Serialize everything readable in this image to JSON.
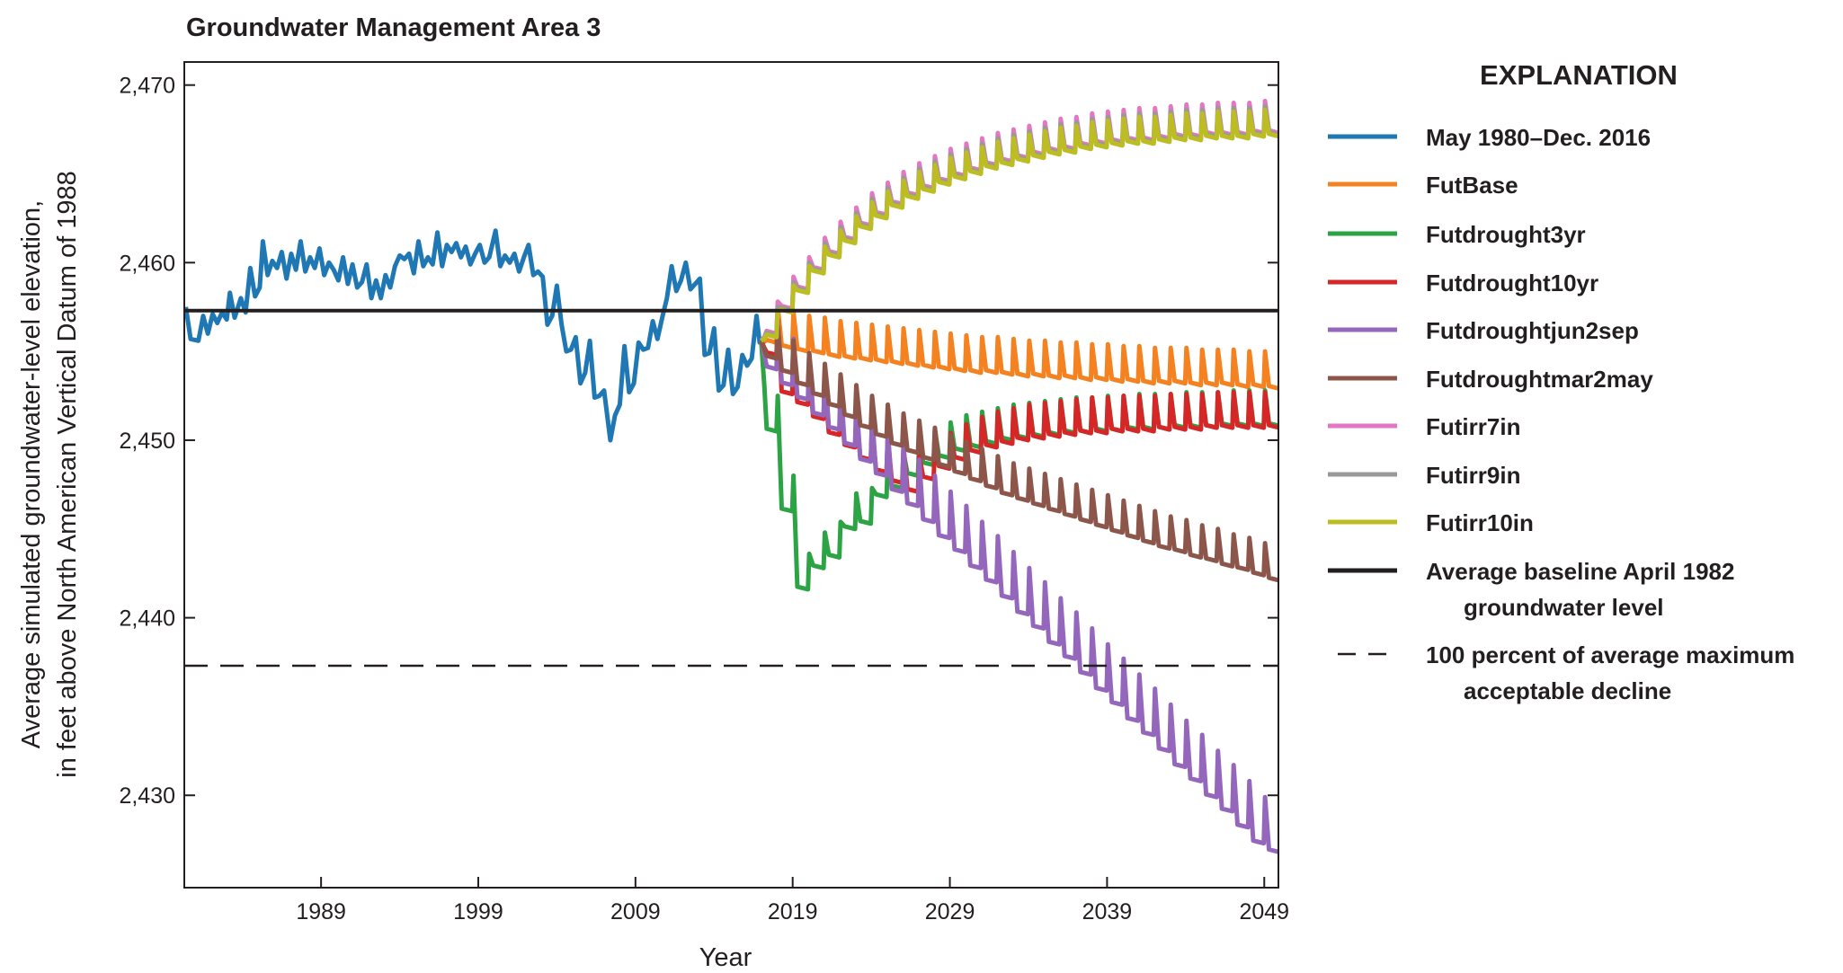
{
  "chart_data": {
    "type": "line",
    "title": "Groundwater Management Area 3",
    "xlabel": "Year",
    "ylabel": [
      "Average simulated groundwater-level elevation,",
      "in feet above North American Vertical Datum of 1988"
    ],
    "xlim": [
      1980.3,
      2049.9
    ],
    "ylim": [
      2424.8,
      2471.3
    ],
    "x_ticks": [
      1989,
      1999,
      2009,
      2019,
      2029,
      2039,
      2049
    ],
    "x_tick_labels": [
      "1989",
      "1999",
      "2009",
      "2019",
      "2029",
      "2039",
      "2049"
    ],
    "y_ticks": [
      2430,
      2440,
      2450,
      2460,
      2470
    ],
    "y_tick_labels": [
      "2,430",
      "2,440",
      "2,450",
      "2,460",
      "2,470"
    ],
    "grid": false,
    "legend": {
      "title": "EXPLANATION",
      "placement": "right"
    },
    "reference_lines": [
      {
        "name": "Average baseline April 1982 groundwater level",
        "label_lines": [
          "Average baseline April 1982",
          "groundwater level"
        ],
        "y": 2457.3,
        "color": "#231f20",
        "style": "solid"
      },
      {
        "name": "100 percent of average maximum acceptable decline",
        "label_lines": [
          "100 percent of average maximum",
          "acceptable decline"
        ],
        "y": 2437.3,
        "color": "#231f20",
        "style": "dashed"
      }
    ],
    "historical": {
      "name": "May 1980–Dec. 2016",
      "color": "#1f77b4",
      "points": [
        [
          1980.4,
          2457.5
        ],
        [
          1980.7,
          2455.7
        ],
        [
          1981.2,
          2455.6
        ],
        [
          1981.5,
          2457.0
        ],
        [
          1981.8,
          2456.0
        ],
        [
          1982.1,
          2457.1
        ],
        [
          1982.4,
          2456.6
        ],
        [
          1982.7,
          2457.2
        ],
        [
          1983.0,
          2456.8
        ],
        [
          1983.2,
          2458.3
        ],
        [
          1983.5,
          2456.9
        ],
        [
          1983.9,
          2458.0
        ],
        [
          1984.2,
          2457.2
        ],
        [
          1984.5,
          2459.7
        ],
        [
          1984.8,
          2458.1
        ],
        [
          1985.1,
          2458.6
        ],
        [
          1985.3,
          2461.2
        ],
        [
          1985.6,
          2459.3
        ],
        [
          1985.9,
          2460.1
        ],
        [
          1986.2,
          2459.7
        ],
        [
          1986.5,
          2460.6
        ],
        [
          1986.8,
          2459.1
        ],
        [
          1987.1,
          2460.5
        ],
        [
          1987.4,
          2459.6
        ],
        [
          1987.7,
          2461.2
        ],
        [
          1988.0,
          2459.5
        ],
        [
          1988.3,
          2460.3
        ],
        [
          1988.6,
          2459.7
        ],
        [
          1988.9,
          2460.8
        ],
        [
          1989.2,
          2459.3
        ],
        [
          1989.5,
          2460.0
        ],
        [
          1989.8,
          2459.6
        ],
        [
          1990.1,
          2459.0
        ],
        [
          1990.4,
          2460.3
        ],
        [
          1990.7,
          2458.8
        ],
        [
          1991.0,
          2459.9
        ],
        [
          1991.3,
          2458.6
        ],
        [
          1991.6,
          2458.9
        ],
        [
          1991.9,
          2459.9
        ],
        [
          1992.2,
          2458.0
        ],
        [
          1992.5,
          2459.0
        ],
        [
          1992.8,
          2458.0
        ],
        [
          1993.1,
          2459.3
        ],
        [
          1993.4,
          2458.6
        ],
        [
          1993.7,
          2459.8
        ],
        [
          1994.0,
          2460.4
        ],
        [
          1994.3,
          2460.2
        ],
        [
          1994.6,
          2460.5
        ],
        [
          1994.9,
          2459.4
        ],
        [
          1995.2,
          2461.2
        ],
        [
          1995.5,
          2459.8
        ],
        [
          1995.8,
          2460.3
        ],
        [
          1996.1,
          2459.9
        ],
        [
          1996.4,
          2461.7
        ],
        [
          1996.7,
          2459.8
        ],
        [
          1997.0,
          2461.0
        ],
        [
          1997.3,
          2460.6
        ],
        [
          1997.6,
          2461.1
        ],
        [
          1997.9,
          2460.3
        ],
        [
          1998.2,
          2460.9
        ],
        [
          1998.5,
          2459.9
        ],
        [
          1998.8,
          2460.5
        ],
        [
          1999.1,
          2461.0
        ],
        [
          1999.4,
          2460.0
        ],
        [
          1999.7,
          2460.3
        ],
        [
          2000.1,
          2461.8
        ],
        [
          2000.4,
          2459.8
        ],
        [
          2000.7,
          2460.4
        ],
        [
          2001.0,
          2460.0
        ],
        [
          2001.3,
          2460.5
        ],
        [
          2001.6,
          2459.5
        ],
        [
          2001.9,
          2460.3
        ],
        [
          2002.2,
          2461.0
        ],
        [
          2002.5,
          2459.3
        ],
        [
          2002.8,
          2459.5
        ],
        [
          2003.1,
          2459.2
        ],
        [
          2003.4,
          2456.5
        ],
        [
          2003.7,
          2457.0
        ],
        [
          2004.0,
          2458.7
        ],
        [
          2004.3,
          2456.5
        ],
        [
          2004.6,
          2455.0
        ],
        [
          2004.9,
          2455.1
        ],
        [
          2005.2,
          2455.8
        ],
        [
          2005.5,
          2453.2
        ],
        [
          2005.8,
          2453.8
        ],
        [
          2006.1,
          2455.6
        ],
        [
          2006.4,
          2452.4
        ],
        [
          2006.7,
          2452.5
        ],
        [
          2007.0,
          2452.8
        ],
        [
          2007.4,
          2450.0
        ],
        [
          2007.7,
          2451.4
        ],
        [
          2008.0,
          2452.0
        ],
        [
          2008.3,
          2455.3
        ],
        [
          2008.6,
          2452.7
        ],
        [
          2008.9,
          2453.2
        ],
        [
          2009.2,
          2455.5
        ],
        [
          2009.5,
          2455.1
        ],
        [
          2009.8,
          2455.2
        ],
        [
          2010.1,
          2456.7
        ],
        [
          2010.4,
          2455.7
        ],
        [
          2010.7,
          2456.9
        ],
        [
          2011.0,
          2458.0
        ],
        [
          2011.3,
          2459.8
        ],
        [
          2011.6,
          2458.4
        ],
        [
          2011.9,
          2459.0
        ],
        [
          2012.2,
          2460.0
        ],
        [
          2012.5,
          2458.5
        ],
        [
          2012.8,
          2458.8
        ],
        [
          2013.1,
          2459.1
        ],
        [
          2013.4,
          2454.8
        ],
        [
          2013.7,
          2454.9
        ],
        [
          2014.0,
          2456.3
        ],
        [
          2014.3,
          2452.8
        ],
        [
          2014.6,
          2453.1
        ],
        [
          2014.9,
          2455.1
        ],
        [
          2015.2,
          2452.6
        ],
        [
          2015.5,
          2453.0
        ],
        [
          2015.8,
          2454.8
        ],
        [
          2016.1,
          2454.2
        ],
        [
          2016.4,
          2454.6
        ],
        [
          2016.7,
          2457.0
        ],
        [
          2016.9,
          2455.5
        ],
        [
          2017.0,
          2455.6
        ]
      ]
    },
    "scenario_start": {
      "year": 2017.0,
      "value": 2455.6
    },
    "scenario_years": [
      2017,
      2018,
      2019,
      2020,
      2021,
      2022,
      2023,
      2024,
      2025,
      2026,
      2027,
      2028,
      2029,
      2030,
      2031,
      2032,
      2033,
      2034,
      2035,
      2036,
      2037,
      2038,
      2039,
      2040,
      2041,
      2042,
      2043,
      2044,
      2045,
      2046,
      2047,
      2048,
      2049
    ],
    "series": [
      {
        "name": "FutBase",
        "color": "#f58220",
        "seasonal_peak_above_trough": 2.0,
        "annual_troughs": [
          2455.5,
          2455.2,
          2455.0,
          2454.9,
          2454.7,
          2454.6,
          2454.5,
          2454.4,
          2454.3,
          2454.2,
          2454.1,
          2454.0,
          2453.9,
          2453.8,
          2453.8,
          2453.7,
          2453.6,
          2453.6,
          2453.5,
          2453.5,
          2453.4,
          2453.4,
          2453.3,
          2453.3,
          2453.2,
          2453.2,
          2453.2,
          2453.1,
          2453.1,
          2453.1,
          2453.0,
          2453.0,
          2452.9
        ]
      },
      {
        "name": "Futdrought3yr",
        "color": "#2ca344",
        "seasonal_peak_above_trough": 2.0,
        "annual_troughs": [
          2450.5,
          2446.0,
          2441.6,
          2442.8,
          2443.4,
          2445.0,
          2445.3,
          2446.8,
          2447.3,
          2448.0,
          2448.6,
          2449.0,
          2449.4,
          2449.6,
          2449.8,
          2450.0,
          2450.1,
          2450.2,
          2450.3,
          2450.4,
          2450.4,
          2450.5,
          2450.5,
          2450.6,
          2450.6,
          2450.6,
          2450.7,
          2450.7,
          2450.7,
          2450.8,
          2450.8,
          2450.8,
          2450.8
        ]
      },
      {
        "name": "Futdrought10yr",
        "color": "#d62728",
        "seasonal_peak_above_trough": 2.0,
        "annual_troughs": [
          2454.8,
          2452.6,
          2452.0,
          2451.2,
          2450.3,
          2449.6,
          2448.9,
          2448.2,
          2447.6,
          2447.1,
          2447.8,
          2448.4,
          2448.9,
          2449.3,
          2449.6,
          2449.8,
          2450.0,
          2450.1,
          2450.2,
          2450.3,
          2450.4,
          2450.4,
          2450.5,
          2450.5,
          2450.5,
          2450.6,
          2450.6,
          2450.6,
          2450.7,
          2450.7,
          2450.7,
          2450.7,
          2450.7
        ]
      },
      {
        "name": "Futdroughtjun2sep",
        "color": "#9467bd",
        "seasonal_peak_above_trough": 2.6,
        "annual_troughs": [
          2454.0,
          2453.1,
          2452.3,
          2451.4,
          2450.6,
          2449.7,
          2448.8,
          2448.0,
          2447.1,
          2446.3,
          2445.4,
          2444.5,
          2443.7,
          2442.8,
          2442.0,
          2441.1,
          2440.2,
          2439.4,
          2438.5,
          2437.7,
          2436.8,
          2435.9,
          2435.1,
          2434.2,
          2433.4,
          2432.5,
          2431.6,
          2430.8,
          2429.9,
          2429.1,
          2428.2,
          2427.3,
          2426.8
        ]
      },
      {
        "name": "Futdroughtmar2may",
        "color": "#8c564b",
        "seasonal_peak_above_trough": 1.8,
        "annual_troughs": [
          2454.6,
          2453.8,
          2453.1,
          2452.5,
          2451.9,
          2451.3,
          2450.7,
          2450.2,
          2449.7,
          2449.3,
          2448.9,
          2448.5,
          2448.1,
          2447.7,
          2447.3,
          2446.9,
          2446.6,
          2446.3,
          2446.0,
          2445.7,
          2445.4,
          2445.1,
          2444.8,
          2444.5,
          2444.2,
          2443.9,
          2443.7,
          2443.4,
          2443.2,
          2442.9,
          2442.7,
          2442.4,
          2442.1
        ]
      },
      {
        "name": "Futirr7in",
        "color": "#e377c2",
        "seasonal_peak_above_trough": 1.8,
        "annual_troughs": [
          2456.0,
          2457.4,
          2458.5,
          2459.6,
          2460.5,
          2461.3,
          2462.1,
          2462.7,
          2463.3,
          2463.8,
          2464.2,
          2464.6,
          2464.9,
          2465.2,
          2465.5,
          2465.7,
          2465.9,
          2466.1,
          2466.3,
          2466.4,
          2466.6,
          2466.7,
          2466.8,
          2466.9,
          2466.9,
          2467.0,
          2467.1,
          2467.1,
          2467.2,
          2467.2,
          2467.2,
          2467.3,
          2467.3
        ]
      },
      {
        "name": "Futirr9in",
        "color": "#999999",
        "seasonal_peak_above_trough": 1.6,
        "annual_troughs": [
          2455.9,
          2457.3,
          2458.4,
          2459.5,
          2460.4,
          2461.2,
          2462.0,
          2462.6,
          2463.2,
          2463.7,
          2464.1,
          2464.5,
          2464.8,
          2465.1,
          2465.4,
          2465.6,
          2465.8,
          2466.0,
          2466.2,
          2466.3,
          2466.5,
          2466.6,
          2466.7,
          2466.8,
          2466.8,
          2466.9,
          2467.0,
          2467.0,
          2467.1,
          2467.1,
          2467.1,
          2467.2,
          2467.2
        ]
      },
      {
        "name": "Futirr10in",
        "color": "#bcbd22",
        "seasonal_peak_above_trough": 1.5,
        "annual_troughs": [
          2455.8,
          2457.2,
          2458.3,
          2459.4,
          2460.3,
          2461.1,
          2461.9,
          2462.5,
          2463.1,
          2463.6,
          2464.0,
          2464.4,
          2464.7,
          2465.0,
          2465.3,
          2465.5,
          2465.7,
          2465.9,
          2466.1,
          2466.2,
          2466.4,
          2466.5,
          2466.6,
          2466.7,
          2466.7,
          2466.8,
          2466.9,
          2466.9,
          2467.0,
          2467.0,
          2467.0,
          2467.1,
          2467.1
        ]
      }
    ]
  }
}
